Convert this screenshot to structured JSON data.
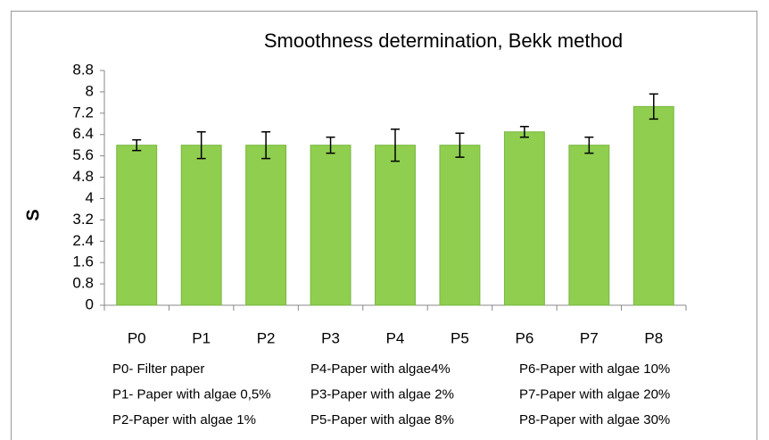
{
  "chart_data": {
    "type": "bar",
    "title": "Smoothness determination, Bekk method",
    "y_label": "S",
    "categories": [
      "P0",
      "P1",
      "P2",
      "P3",
      "P4",
      "P5",
      "P6",
      "P7",
      "P8"
    ],
    "values": [
      6.0,
      6.0,
      6.0,
      6.0,
      6.0,
      6.0,
      6.5,
      6.0,
      7.45
    ],
    "errors": [
      0.2,
      0.5,
      0.5,
      0.3,
      0.6,
      0.45,
      0.2,
      0.3,
      0.47
    ],
    "color": "#8fce4f",
    "ylim": [
      0,
      8.8
    ],
    "yticks": [
      0,
      0.8,
      1.6,
      2.4,
      3.2,
      4,
      4.8,
      5.6,
      6.4,
      7.2,
      8,
      8.8
    ],
    "grid": false,
    "notes": [
      [
        "P0- Filter paper",
        "P4-Paper with algae4%",
        "P6-Paper with algae 10%"
      ],
      [
        "P1- Paper with algae 0,5%",
        "P3-Paper with algae 2%",
        "P7-Paper with algae 20%"
      ],
      [
        "P2-Paper with algae 1%",
        "P5-Paper with algae 8%",
        "P8-Paper with algae 30%"
      ]
    ]
  }
}
